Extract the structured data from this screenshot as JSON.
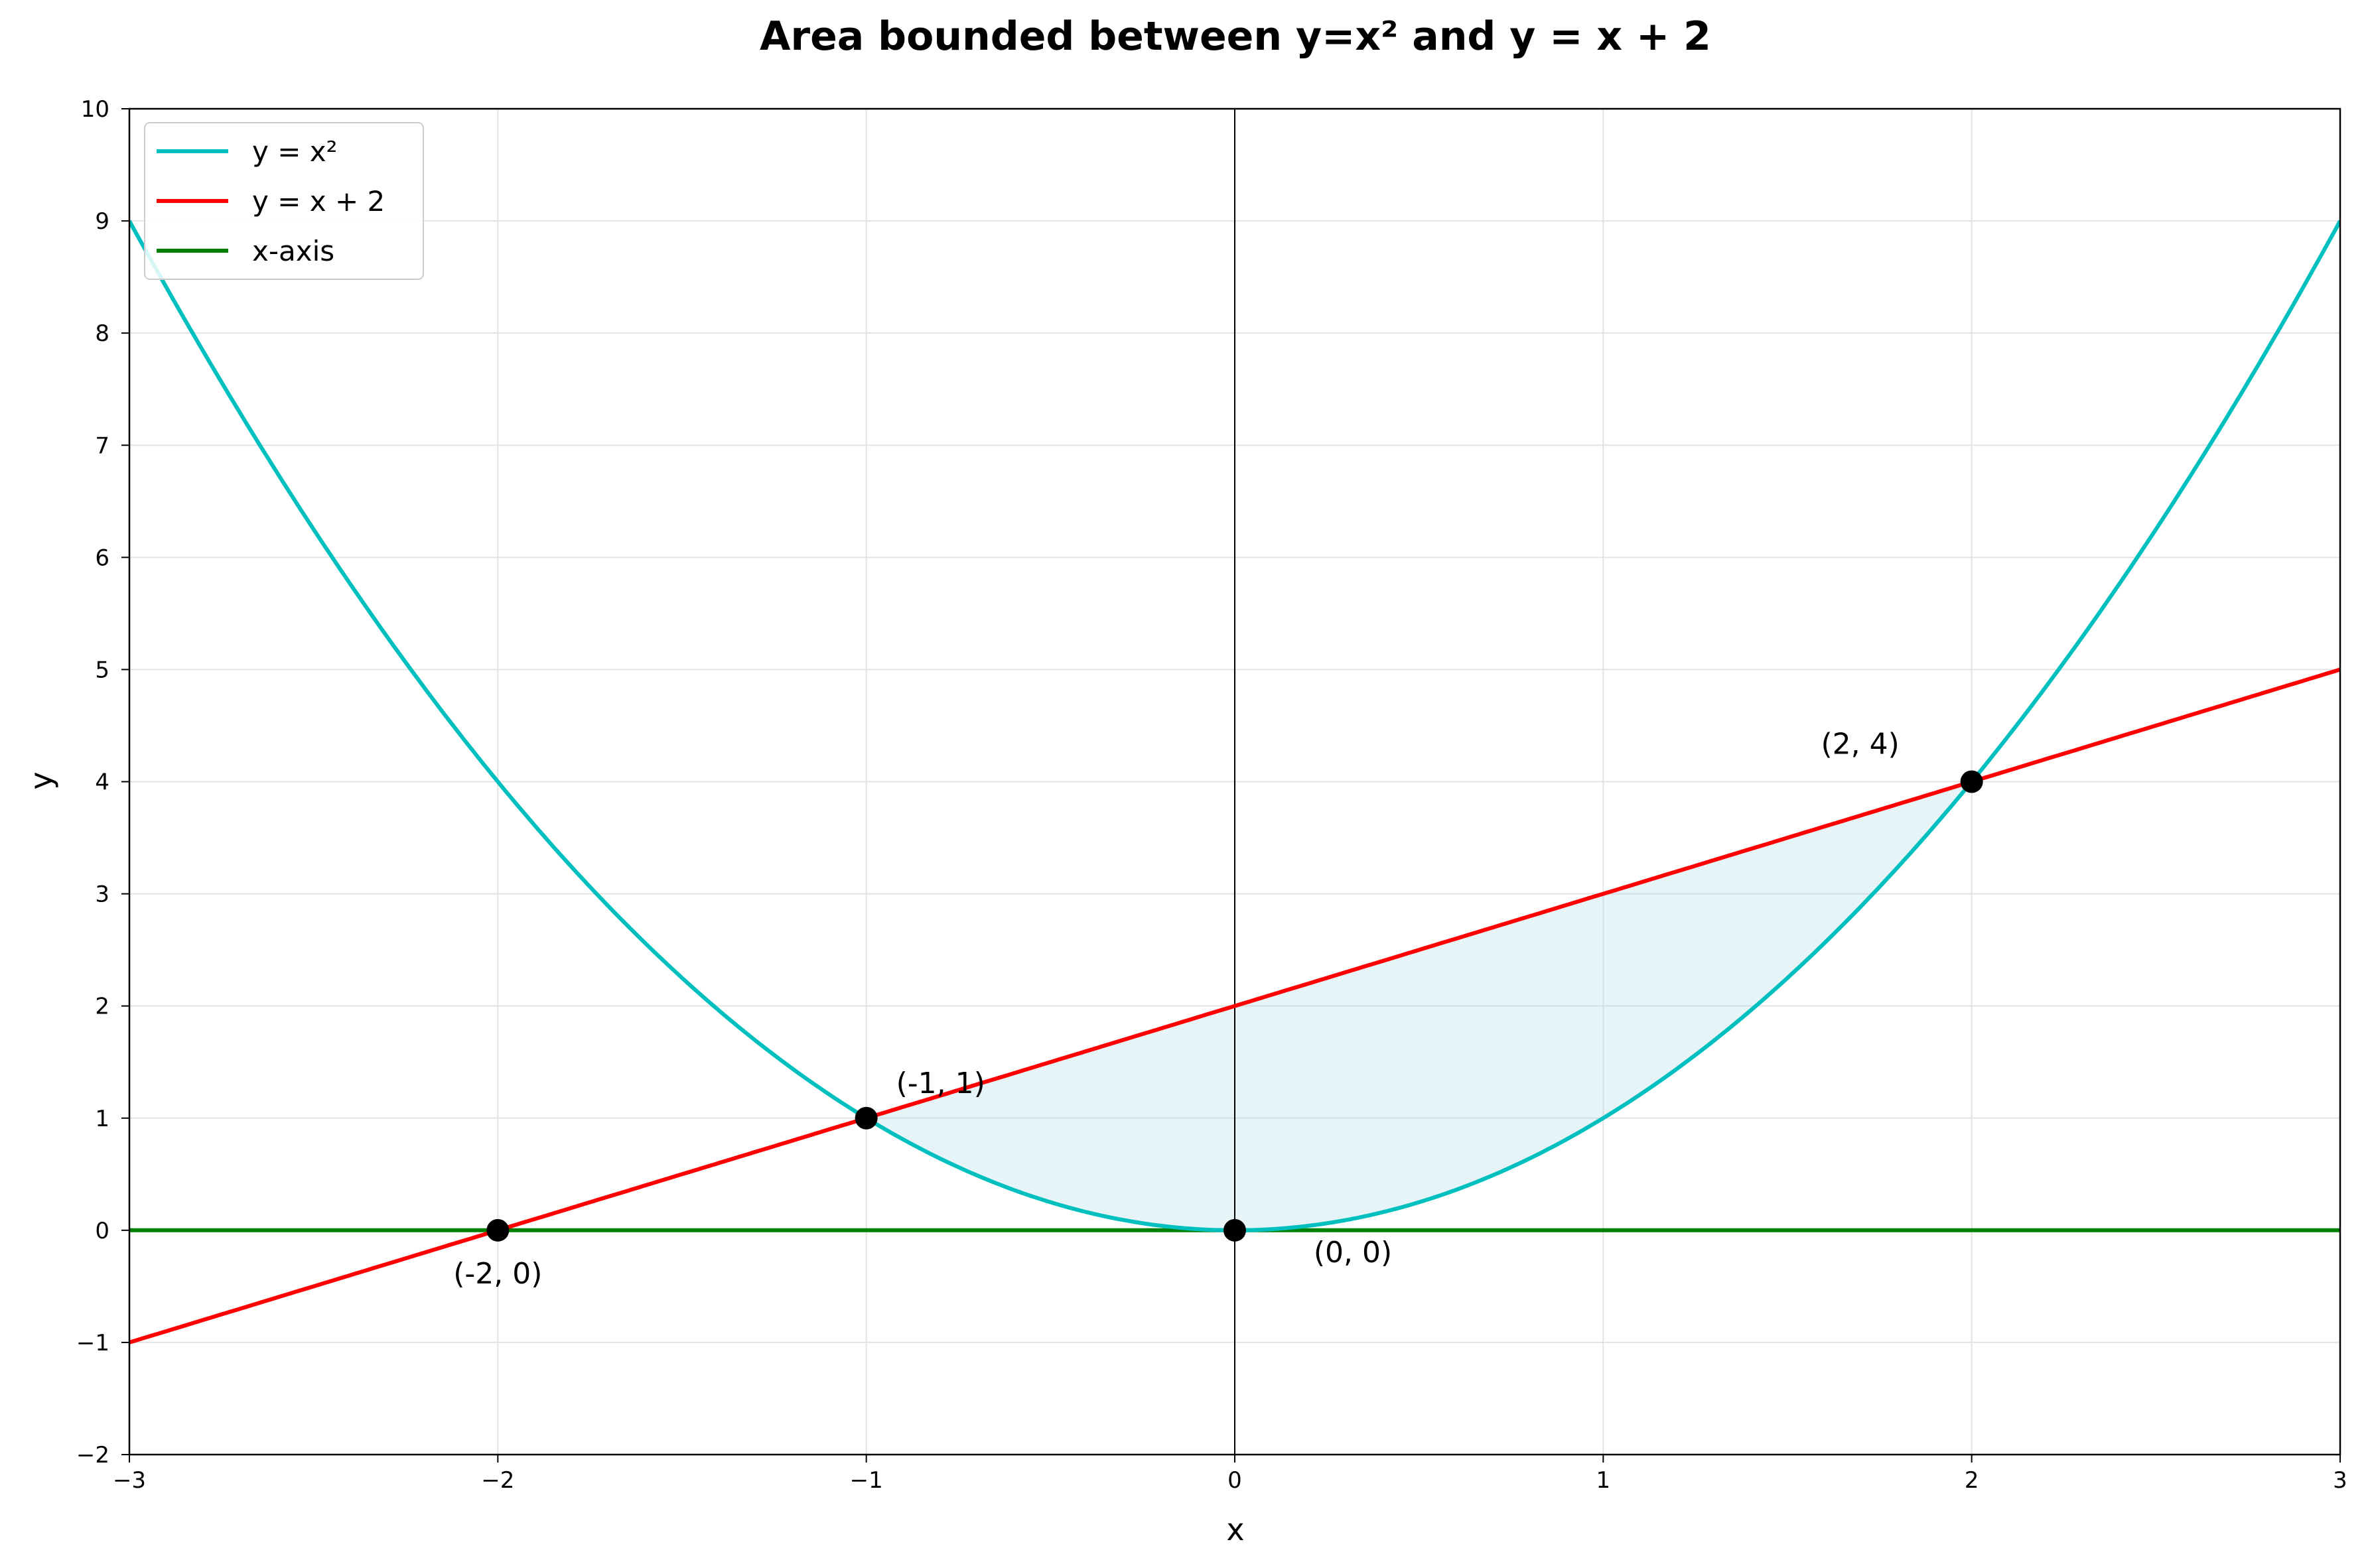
{
  "chart_data": {
    "type": "line",
    "title": "Area bounded between y=x² and y = x + 2",
    "xlabel": "x",
    "ylabel": "y",
    "xlim": [
      -3,
      3
    ],
    "ylim": [
      -2,
      10
    ],
    "xticks": [
      -3,
      -2,
      -1,
      0,
      1,
      2,
      3
    ],
    "yticks": [
      -2,
      -1,
      0,
      1,
      2,
      3,
      4,
      5,
      6,
      7,
      8,
      9,
      10
    ],
    "grid": true,
    "legend_position": "top-left",
    "series": [
      {
        "name": "y = x²",
        "function": "x^2",
        "color": "#00bfbf"
      },
      {
        "name": "y = x + 2",
        "function": "x + 2",
        "color": "#ff0000"
      },
      {
        "name": "x-axis",
        "function": "0",
        "color": "#008000"
      }
    ],
    "shaded_region": {
      "x_from": -1,
      "x_to": 2,
      "upper": "x + 2",
      "lower": "x^2",
      "color": "#add8e6"
    },
    "points": [
      {
        "label": "(-2, 0)",
        "x": -2,
        "y": 0
      },
      {
        "label": "(-1, 1)",
        "x": -1,
        "y": 1
      },
      {
        "label": "(0, 0)",
        "x": 0,
        "y": 0
      },
      {
        "label": "(2, 4)",
        "x": 2,
        "y": 4
      }
    ]
  }
}
